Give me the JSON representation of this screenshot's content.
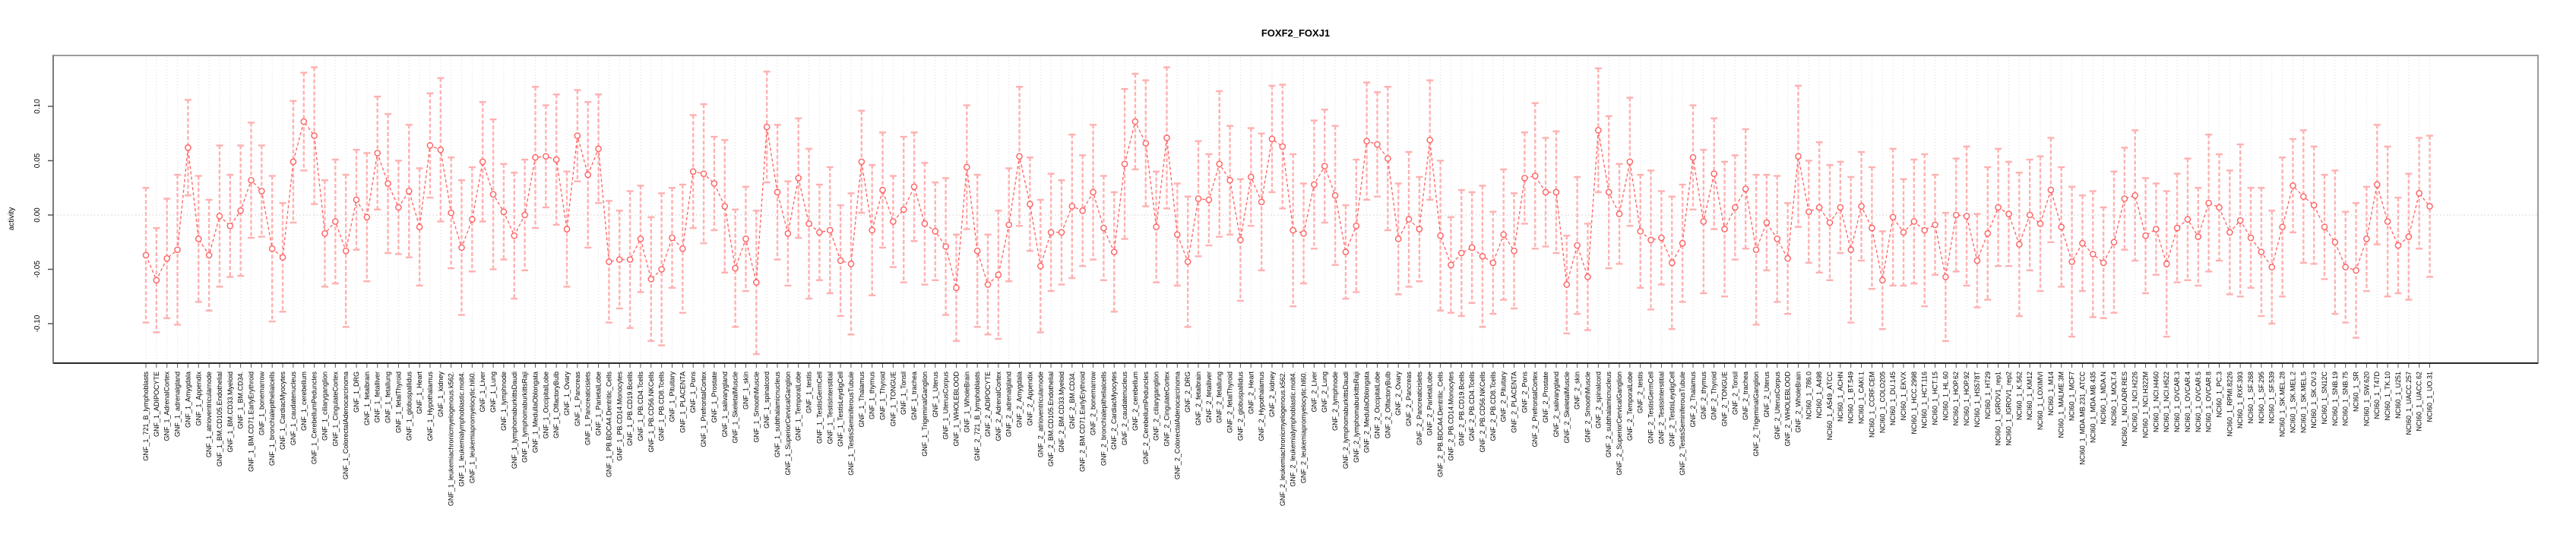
{
  "figure": {
    "title": "FOXF2_FOXJ1",
    "ylabel": "activity"
  },
  "chart_data": {
    "type": "line",
    "title": "FOXF2_FOXJ1",
    "xlabel": "",
    "ylabel": "activity",
    "ylim": [
      -0.137,
      0.124
    ],
    "yticks": [
      0.1,
      0.05,
      0.0,
      -0.05,
      -0.1
    ],
    "ytick_labels": [
      "0.10",
      "0.05",
      "0.00",
      "-0.05",
      "-0.10"
    ],
    "legend": "none",
    "grid": "vertical dotted line per category, dotted horizontal line at y=0",
    "marker": "open-circle",
    "line_style": "dashed",
    "error_bars": true,
    "colors": {
      "point": "#ff6060",
      "line": "#ff6060",
      "error_bar": "#ffb0b0",
      "grid": "#dcdcdc",
      "zero_line": "#d8d8d8",
      "box": "#9b9b9b",
      "x_axis": "#2a2a2a",
      "tick": "#555555",
      "text": "#000000",
      "background": "#ffffff"
    },
    "categories": [
      "GNF_1_721_B_lymphoblasts",
      "GNF_1_ADIPOCYTE",
      "GNF_1_AdrenalCortex",
      "GNF_1_adrenalgland",
      "GNF_1_Amygdala",
      "GNF_1_Appendix",
      "GNF_1_atrioventricularnode",
      "GNF_1_BM.CD105.Endothelial",
      "GNF_1_BM.CD33.Myeloid",
      "GNF_1_BM.CD34.",
      "GNF_1_BM.CD71.EarlyErythroid",
      "GNF_1_bonemarrow",
      "GNF_1_bronchialepithelialcells",
      "GNF_1_CardiacMyocytes",
      "GNF_1_caudatenucleus",
      "GNF_1_cerebellum",
      "GNF_1_CerebellumPeduncles",
      "GNF_1_ciliaryganglion",
      "GNF_1_CingulateCortex",
      "GNF_1_ColorectalAdenocarcinoma",
      "GNF_1_DRG",
      "GNF_1_fetalbrain",
      "GNF_1_fetalliver",
      "GNF_1_fetallung",
      "GNF_1_fetalThyroid",
      "GNF_1_globuspallidus",
      "GNF_1_Heart",
      "GNF_1_Hypothalamus",
      "GNF_1_kidney",
      "GNF_1_leukemiachronicmyelogenous.k562.",
      "GNF_1_leukemialymphoblastic.molt4.",
      "GNF_1_leukemiapromyelocytic.hl60.",
      "GNF_1_Liver",
      "GNF_1_Lung",
      "GNF_1_lymphnode",
      "GNF_1_lymphomaburkittsDaudi",
      "GNF_1_lymphomaburkittsRaji",
      "GNF_1_MedullaOblongata",
      "GNF_1_OccipitalLobe",
      "GNF_1_OlfactoryBulb",
      "GNF_1_Ovary",
      "GNF_1_Pancreas",
      "GNF_1_Pancreaticislets",
      "GNF_1_ParietalLobe",
      "GNF_1_PB.BDCA4.Dentritic_Cells",
      "GNF_1_PB.CD14.Monocytes",
      "GNF_1_PB.CD19.Bcells",
      "GNF_1_PB.CD4.Tcells",
      "GNF_1_PB.CD56.NKCells",
      "GNF_1_PB.CD8.Tcells",
      "GNF_1_Pituitary",
      "GNF_1_PLACENTA",
      "GNF_1_Pons",
      "GNF_1_PrefrontalCortex",
      "GNF_1_Prostate",
      "GNF_1_salivarygland",
      "GNF_1_SkeletalMuscle",
      "GNF_1_skin",
      "GNF_1_SmoothMuscle",
      "GNF_1_spinalcord",
      "GNF_1_subthalamicnucleus",
      "GNF_1_SuperiorCervicalGanglion",
      "GNF_1_TemporalLobe",
      "GNF_1_testis",
      "GNF_1_TestisGermCell",
      "GNF_1_TestisInterstitial",
      "GNF_1_TestisLeydigCell",
      "GNF_1_TestisSeminiferousTubule",
      "GNF_1_Thalamus",
      "GNF_1_thymus",
      "GNF_1_Thyroid",
      "GNF_1_TONGUE",
      "GNF_1_Tonsil",
      "GNF_1_trachea",
      "GNF_1_TrigeminalGanglion",
      "GNF_1_Uterus",
      "GNF_1_UterusCorpus",
      "GNF_1_WHOLEBLOOD",
      "GNF_1_WholeBrain",
      "GNF_2_721_B_lymphoblasts",
      "GNF_2_ADIPOCYTE",
      "GNF_2_AdrenalCortex",
      "GNF_2_adrenalgland",
      "GNF_2_Amygdala",
      "GNF_2_Appendix",
      "GNF_2_atrioventricularnode",
      "GNF_2_BM.CD105.Endothelial",
      "GNF_2_BM.CD33.Myeloid",
      "GNF_2_BM.CD34.",
      "GNF_2_BM.CD71.EarlyErythroid",
      "GNF_2_bonemarrow",
      "GNF_2_bronchialepithelialcells",
      "GNF_2_CardiacMyocytes",
      "GNF_2_caudatenucleus",
      "GNF_2_cerebellum",
      "GNF_2_CerebellumPeduncles",
      "GNF_2_ciliaryganglion",
      "GNF_2_CingulateCortex",
      "GNF_2_ColorectalAdenocarcinoma",
      "GNF_2_DRG",
      "GNF_2_fetalbrain",
      "GNF_2_fetalliver",
      "GNF_2_fetallung",
      "GNF_2_fetalThyroid",
      "GNF_2_globuspallidus",
      "GNF_2_Heart",
      "GNF_2_Hypothalamus",
      "GNF_2_kidney",
      "GNF_2_leukemiachronicmyelogenous.k562.",
      "GNF_2_leukemialymphoblastic.molt4.",
      "GNF_2_leukemiapromyelocytic.hl60.",
      "GNF_2_Liver",
      "GNF_2_Lung",
      "GNF_2_lymphnode",
      "GNF_2_lymphomaburkittsDaudi",
      "GNF_2_lymphomaburkittsRaji",
      "GNF_2_MedullaOblongata",
      "GNF_2_OccipitalLobe",
      "GNF_2_OlfactoryBulb",
      "GNF_2_Ovary",
      "GNF_2_Pancreas",
      "GNF_2_Pancreaticislets",
      "GNF_2_ParietalLobe",
      "GNF_2_PB.BDCA4.Dentritic_Cells",
      "GNF_2_PB.CD14.Monocytes",
      "GNF_2_PB.CD19.Bcells",
      "GNF_2_PB.CD4.Tcells",
      "GNF_2_PB.CD56.NKCells",
      "GNF_2_PB.CD8.Tcells",
      "GNF_2_Pituitary",
      "GNF_2_PLACENTA",
      "GNF_2_Pons",
      "GNF_2_PrefrontalCortex",
      "GNF_2_Prostate",
      "GNF_2_salivarygland",
      "GNF_2_SkeletalMuscle",
      "GNF_2_skin",
      "GNF_2_SmoothMuscle",
      "GNF_2_spinalcord",
      "GNF_2_subthalamicnucleus",
      "GNF_2_SuperiorCervicalGanglion",
      "GNF_2_TemporalLobe",
      "GNF_2_testis",
      "GNF_2_TestisGermCell",
      "GNF_2_TestisInterstitial",
      "GNF_2_TestisLeydigCell",
      "GNF_2_TestisSeminiferousTubule",
      "GNF_2_Thalamus",
      "GNF_2_thymus",
      "GNF_2_Thyroid",
      "GNF_2_TONGUE",
      "GNF_2_Tonsil",
      "GNF_2_trachea",
      "GNF_2_TrigeminalGanglion",
      "GNF_2_Uterus",
      "GNF_2_UterusCorpus",
      "GNF_2_WHOLEBLOOD",
      "GNF_2_WholeBrain",
      "NCI60_1_786.0",
      "NCI60_1_A498",
      "NCI60_1_A549_ATCC",
      "NCI60_1_ACHN",
      "NCI60_1_BT.549",
      "NCI60_1_CAKI.1",
      "NCI60_1_CCRF.CEM",
      "NCI60_1_COLO205",
      "NCI60_1_DU.145",
      "NCI60_1_EKVX",
      "NCI60_1_HCC.2998",
      "NCI60_1_HCT.116",
      "NCI60_1_HCT.15",
      "NCI60_1_HL.60",
      "NCI60_1_HOP.62",
      "NCI60_1_HOP.92",
      "NCI60_1_HS578T",
      "NCI60_1_HT29",
      "NCI60_1_IGROV1_rep1",
      "NCI60_1_IGROV1_rep2",
      "NCI60_1_K.562",
      "NCI60_1_KM12",
      "NCI60_1_LOXIMVI",
      "NCI60_1_M14",
      "NCI60_1_MALME.3M",
      "NCI60_1_MCF7",
      "NCI60_1_MDA.MB.231_ATCC",
      "NCI60_1_MDA.MB.435",
      "NCI60_1_MDA.N",
      "NCI60_1_MOLT.4",
      "NCI60_1_NCI.ADR.RES",
      "NCI60_1_NCI.H226",
      "NCI60_1_NCI.H322M",
      "NCI60_1_NCI.H460",
      "NCI60_1_NCI.H522",
      "NCI60_1_OVCAR.3",
      "NCI60_1_OVCAR.4",
      "NCI60_1_OVCAR.5",
      "NCI60_1_OVCAR.8",
      "NCI60_1_PC.3",
      "NCI60_1_RPMI.8226",
      "NCI60_1_RXF.393",
      "NCI60_1_SF.268",
      "NCI60_1_SF.295",
      "NCI60_1_SF.539",
      "NCI60_1_SK.MEL.28",
      "NCI60_1_SK.MEL.2",
      "NCI60_1_SK.MEL.5",
      "NCI60_1_SK.OV.3",
      "NCI60_1_SN12C",
      "NCI60_1_SNB.19",
      "NCI60_1_SNB.75",
      "NCI60_1_SR",
      "NCI60_1_SW.620",
      "NCI60_1_T47D",
      "NCI60_1_TK.10",
      "NCI60_1_U251",
      "NCI60_1_UACC.257",
      "NCI60_1_UACC.62",
      "NCI60_1_UO.31"
    ],
    "values": [
      -0.037,
      -0.06,
      -0.04,
      -0.032,
      0.062,
      -0.022,
      -0.037,
      -0.001,
      -0.01,
      0.004,
      0.032,
      0.022,
      -0.031,
      -0.039,
      0.049,
      0.086,
      0.073,
      -0.017,
      -0.006,
      -0.033,
      0.014,
      -0.002,
      0.057,
      0.029,
      0.007,
      0.022,
      -0.011,
      0.064,
      0.06,
      0.002,
      -0.03,
      -0.004,
      0.049,
      0.019,
      0.003,
      -0.019,
      0.0,
      0.053,
      0.054,
      0.051,
      -0.013,
      0.073,
      0.037,
      0.061,
      -0.043,
      -0.041,
      -0.041,
      -0.022,
      -0.059,
      -0.05,
      -0.021,
      -0.031,
      0.04,
      0.038,
      0.029,
      0.008,
      -0.049,
      -0.022,
      -0.062,
      0.081,
      0.021,
      -0.017,
      0.034,
      -0.008,
      -0.016,
      -0.014,
      -0.042,
      -0.045,
      0.049,
      -0.014,
      0.023,
      -0.006,
      0.005,
      0.026,
      -0.008,
      -0.015,
      -0.029,
      -0.067,
      0.044,
      -0.033,
      -0.064,
      -0.055,
      -0.009,
      0.054,
      0.01,
      -0.047,
      -0.016,
      -0.016,
      0.008,
      0.004,
      0.021,
      -0.012,
      -0.034,
      0.047,
      0.086,
      0.066,
      -0.011,
      0.071,
      -0.018,
      -0.043,
      0.015,
      0.014,
      0.047,
      0.032,
      -0.023,
      0.035,
      0.012,
      0.07,
      0.063,
      -0.014,
      -0.017,
      0.028,
      0.045,
      0.018,
      -0.034,
      -0.01,
      0.068,
      0.065,
      0.052,
      -0.022,
      -0.004,
      -0.013,
      0.069,
      -0.019,
      -0.046,
      -0.035,
      -0.03,
      -0.038,
      -0.044,
      -0.018,
      -0.033,
      0.034,
      0.036,
      0.021,
      0.021,
      -0.064,
      -0.028,
      -0.057,
      0.078,
      0.021,
      0.001,
      0.049,
      -0.015,
      -0.023,
      -0.021,
      -0.044,
      -0.026,
      0.053,
      -0.006,
      0.038,
      -0.013,
      0.007,
      0.024,
      -0.032,
      -0.007,
      -0.022,
      -0.04,
      0.054,
      0.003,
      0.007,
      -0.007,
      0.007,
      -0.032,
      0.008,
      -0.012,
      -0.06,
      -0.002,
      -0.016,
      -0.006,
      -0.014,
      -0.009,
      -0.057,
      0.0,
      -0.001,
      -0.042,
      -0.017,
      0.007,
      0.001,
      -0.027,
      0.0,
      -0.008,
      0.023,
      -0.011,
      -0.043,
      -0.026,
      -0.036,
      -0.044,
      -0.025,
      0.015,
      0.018,
      -0.019,
      -0.013,
      -0.045,
      -0.012,
      -0.004,
      -0.02,
      0.011,
      0.007,
      -0.016,
      -0.005,
      -0.021,
      -0.034,
      -0.048,
      -0.011,
      0.027,
      0.017,
      0.009,
      -0.011,
      -0.025,
      -0.048,
      -0.051,
      -0.022,
      0.028,
      -0.006,
      -0.028,
      -0.02,
      0.02,
      0.008
    ],
    "error_halfwidth": [
      0.062,
      0.048,
      0.055,
      0.069,
      0.044,
      0.058,
      0.051,
      0.065,
      0.047,
      0.06,
      0.053,
      0.042,
      0.067,
      0.05,
      0.056,
      0.045,
      0.063,
      0.049,
      0.057,
      0.07,
      0.046,
      0.059,
      0.052,
      0.064,
      0.043,
      0.061,
      0.054,
      0.048,
      0.066,
      0.051,
      0.062,
      0.048,
      0.055,
      0.069,
      0.044,
      0.058,
      0.051,
      0.065,
      0.047,
      0.06,
      0.053,
      0.042,
      0.067,
      0.05,
      0.056,
      0.045,
      0.063,
      0.049,
      0.057,
      0.07,
      0.046,
      0.059,
      0.052,
      0.064,
      0.043,
      0.061,
      0.054,
      0.048,
      0.066,
      0.051,
      0.062,
      0.048,
      0.055,
      0.069,
      0.044,
      0.058,
      0.051,
      0.065,
      0.047,
      0.06,
      0.053,
      0.042,
      0.067,
      0.05,
      0.056,
      0.045,
      0.063,
      0.049,
      0.057,
      0.07,
      0.046,
      0.059,
      0.052,
      0.064,
      0.043,
      0.061,
      0.054,
      0.048,
      0.066,
      0.051,
      0.062,
      0.048,
      0.055,
      0.069,
      0.044,
      0.058,
      0.051,
      0.065,
      0.047,
      0.06,
      0.053,
      0.042,
      0.067,
      0.05,
      0.056,
      0.045,
      0.063,
      0.049,
      0.057,
      0.07,
      0.046,
      0.059,
      0.052,
      0.064,
      0.043,
      0.061,
      0.054,
      0.048,
      0.066,
      0.051,
      0.062,
      0.048,
      0.055,
      0.069,
      0.044,
      0.058,
      0.051,
      0.065,
      0.047,
      0.06,
      0.053,
      0.042,
      0.067,
      0.05,
      0.056,
      0.045,
      0.063,
      0.049,
      0.057,
      0.07,
      0.046,
      0.059,
      0.052,
      0.064,
      0.043,
      0.061,
      0.054,
      0.048,
      0.066,
      0.051,
      0.062,
      0.048,
      0.055,
      0.069,
      0.044,
      0.058,
      0.051,
      0.065,
      0.047,
      0.06,
      0.053,
      0.042,
      0.067,
      0.05,
      0.056,
      0.045,
      0.063,
      0.049,
      0.057,
      0.07,
      0.046,
      0.059,
      0.052,
      0.064,
      0.043,
      0.061,
      0.054,
      0.048,
      0.066,
      0.051,
      0.062,
      0.048,
      0.055,
      0.069,
      0.044,
      0.058,
      0.051,
      0.065,
      0.047,
      0.06,
      0.053,
      0.042,
      0.067,
      0.05,
      0.056,
      0.045,
      0.063,
      0.049,
      0.057,
      0.07,
      0.046,
      0.059,
      0.052,
      0.064,
      0.043,
      0.061,
      0.054,
      0.048,
      0.066,
      0.051,
      0.062,
      0.048,
      0.055,
      0.069,
      0.044,
      0.058,
      0.051,
      0.065
    ]
  }
}
